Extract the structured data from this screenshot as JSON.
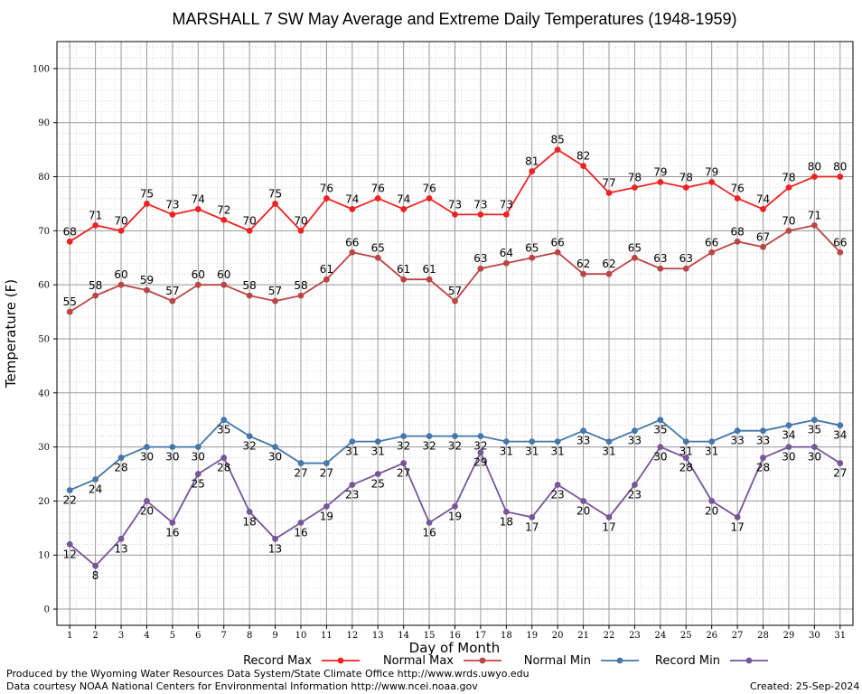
{
  "chart_data": {
    "type": "line",
    "title": "MARSHALL 7 SW May Average and Extreme Daily Temperatures (1948-1959)",
    "xlabel": "Day of Month",
    "ylabel": "Temperature (F)",
    "xlim": [
      0.5,
      31.5
    ],
    "ylim": [
      -3,
      105
    ],
    "yticks": [
      0,
      10,
      20,
      30,
      40,
      50,
      60,
      70,
      80,
      90,
      100
    ],
    "categories": [
      "1",
      "2",
      "3",
      "4",
      "5",
      "6",
      "7",
      "8",
      "9",
      "10",
      "11",
      "12",
      "13",
      "14",
      "15",
      "16",
      "17",
      "18",
      "19",
      "20",
      "21",
      "22",
      "23",
      "24",
      "25",
      "26",
      "27",
      "28",
      "29",
      "30",
      "31"
    ],
    "grid": true,
    "legend_position": "bottom",
    "series": [
      {
        "name": "Record Max",
        "color": "#ee2222",
        "values": [
          68,
          71,
          70,
          75,
          73,
          74,
          72,
          70,
          75,
          70,
          76,
          74,
          76,
          74,
          76,
          73,
          73,
          73,
          81,
          85,
          82,
          77,
          78,
          79,
          78,
          79,
          76,
          74,
          78,
          80,
          80
        ]
      },
      {
        "name": "Normal Max",
        "color": "#bb4444",
        "values": [
          55,
          58,
          60,
          59,
          57,
          60,
          60,
          58,
          57,
          58,
          61,
          66,
          65,
          61,
          61,
          57,
          63,
          64,
          65,
          66,
          62,
          62,
          65,
          63,
          63,
          66,
          68,
          67,
          70,
          71,
          66
        ]
      },
      {
        "name": "Normal Min",
        "color": "#4477aa",
        "values": [
          22,
          24,
          28,
          30,
          30,
          30,
          35,
          32,
          30,
          27,
          27,
          31,
          31,
          32,
          32,
          32,
          32,
          31,
          31,
          31,
          33,
          31,
          33,
          35,
          31,
          31,
          33,
          33,
          34,
          35,
          34
        ]
      },
      {
        "name": "Record Min",
        "color": "#775599",
        "values": [
          12,
          8,
          13,
          20,
          16,
          25,
          28,
          18,
          13,
          16,
          19,
          23,
          25,
          27,
          16,
          19,
          29,
          18,
          17,
          23,
          20,
          17,
          23,
          30,
          28,
          20,
          17,
          28,
          30,
          30,
          27
        ]
      }
    ]
  },
  "footer": {
    "produced_by": "Produced by the Wyoming Water Resources Data System/State Climate Office http://www.wrds.uwyo.edu",
    "data_courtesy": "Data courtesy NOAA National Centers for Environmental Information http://www.ncei.noaa.gov",
    "created": "Created:  25-Sep-2024"
  }
}
